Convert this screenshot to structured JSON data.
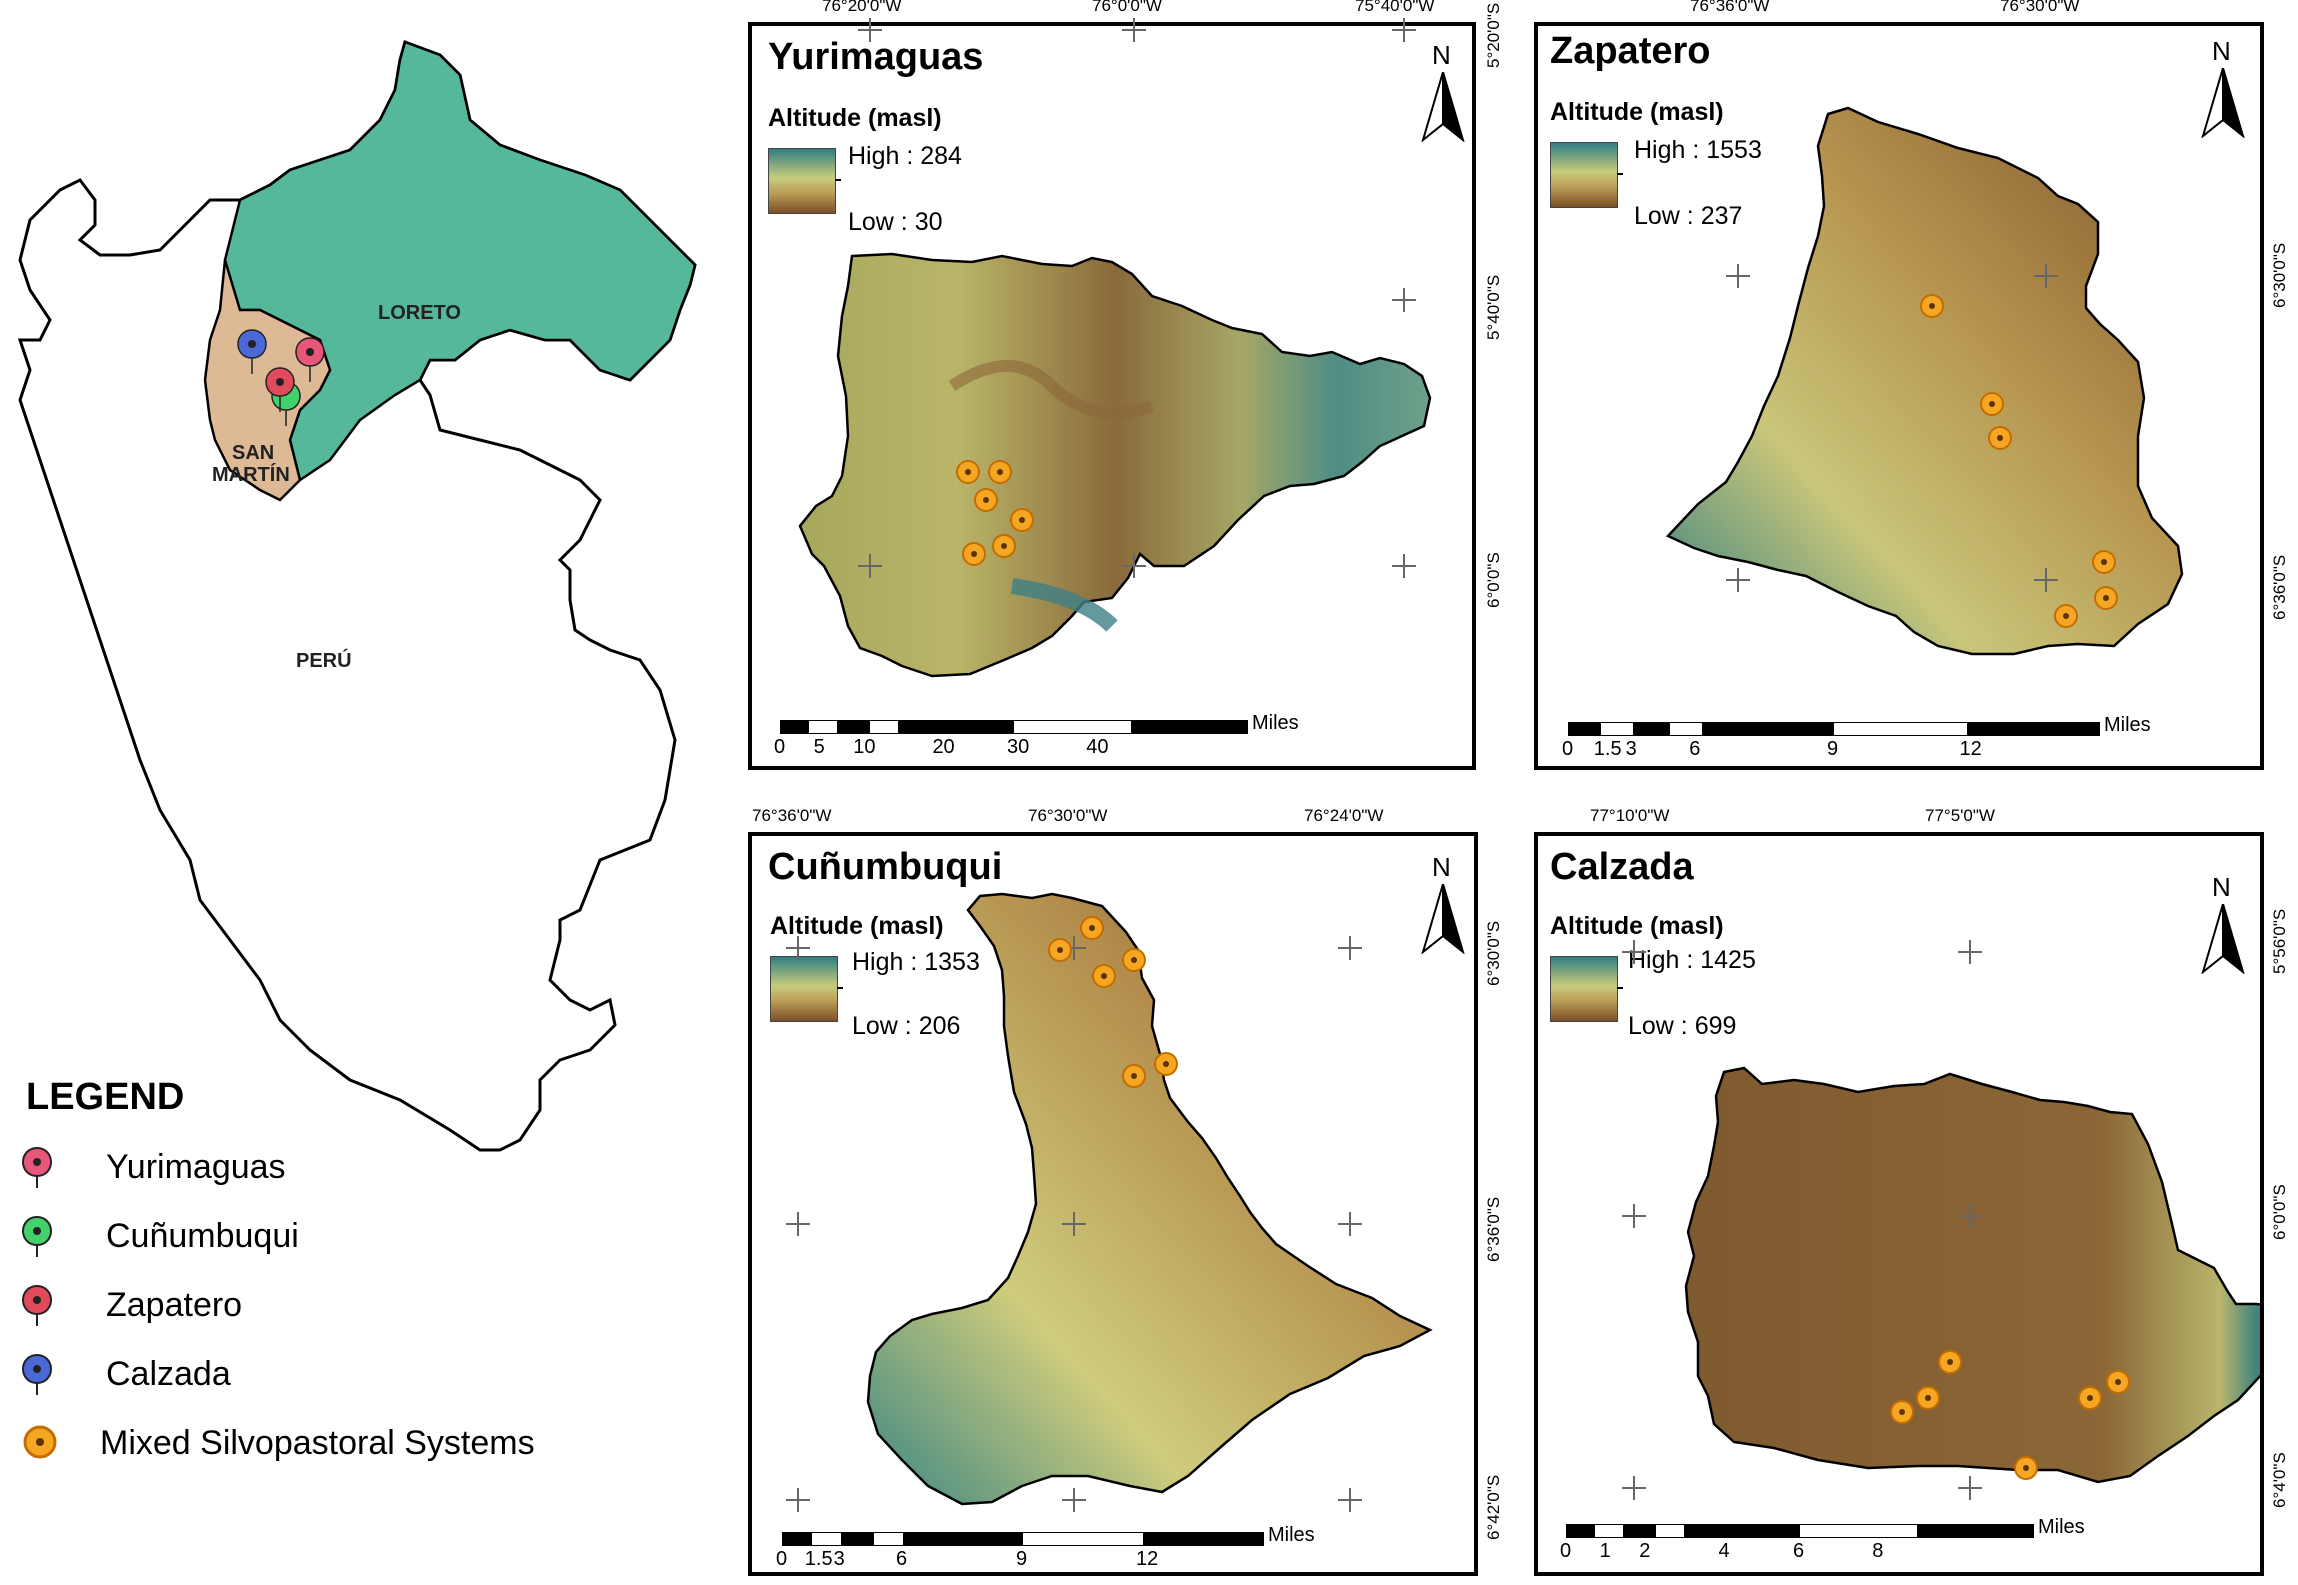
{
  "overview": {
    "labels": {
      "loreto": "LORETO",
      "san_martin_1": "SAN",
      "san_martin_2": "MARTÍN",
      "peru": "PERÚ"
    },
    "colors": {
      "loreto": "#55b89a",
      "san_martin": "#ddb996",
      "outline": "#000000"
    }
  },
  "legend": {
    "title": "LEGEND",
    "items": [
      {
        "label": "Yurimaguas",
        "icon": "pink-pin-icon",
        "color": "#e8567a"
      },
      {
        "label": "Cuñumbuqui",
        "icon": "green-pin-icon",
        "color": "#43d16c"
      },
      {
        "label": "Zapatero",
        "icon": "red-pin-icon",
        "color": "#e04a5a"
      },
      {
        "label": "Calzada",
        "icon": "blue-pin-icon",
        "color": "#4a68d8"
      },
      {
        "label": "Mixed Silvopastoral Systems",
        "icon": "orange-dot-icon",
        "color": "#f5a623"
      }
    ]
  },
  "panels": {
    "yurimaguas": {
      "title": "Yurimaguas",
      "alt_label": "Altitude (masl)",
      "high": "High : 284",
      "low": "Low : 30",
      "top_ticks": [
        "76°20'0\"W",
        "76°0'0\"W",
        "75°40'0\"W"
      ],
      "right_ticks": [
        "5°20'0\"S",
        "5°40'0\"S",
        "6°0'0\"S"
      ],
      "scale": [
        "0",
        "5",
        "10",
        "20",
        "30",
        "40"
      ],
      "unit": "Miles",
      "north": "N"
    },
    "zapatero": {
      "title": "Zapatero",
      "alt_label": "Altitude (masl)",
      "high": "High : 1553",
      "low": "Low : 237",
      "top_ticks": [
        "76°36'0\"W",
        "76°30'0\"W"
      ],
      "right_ticks": [
        "6°30'0\"S",
        "6°36'0\"S"
      ],
      "scale": [
        "0",
        "1.5",
        "3",
        "6",
        "9",
        "12"
      ],
      "unit": "Miles",
      "north": "N"
    },
    "cunumbuqui": {
      "title": "Cuñumbuqui",
      "alt_label": "Altitude (masl)",
      "high": "High : 1353",
      "low": "Low : 206",
      "top_ticks": [
        "76°36'0\"W",
        "76°30'0\"W",
        "76°24'0\"W"
      ],
      "right_ticks": [
        "6°30'0\"S",
        "6°36'0\"S",
        "6°42'0\"S"
      ],
      "scale": [
        "0",
        "1.5",
        "3",
        "6",
        "9",
        "12"
      ],
      "unit": "Miles",
      "north": "N"
    },
    "calzada": {
      "title": "Calzada",
      "alt_label": "Altitude (masl)",
      "high": "High : 1425",
      "low": "Low : 699",
      "top_ticks": [
        "77°10'0\"W",
        "77°5'0\"W"
      ],
      "right_ticks": [
        "5°56'0\"S",
        "6°0'0\"S",
        "6°4'0\"S"
      ],
      "scale": [
        "0",
        "1",
        "2",
        "4",
        "6",
        "8"
      ],
      "unit": "Miles",
      "north": "N"
    }
  },
  "colors": {
    "dot_fill": "#f5a623",
    "dot_ring": "#c46c00",
    "dem_low": "#7a5028",
    "dem_mid": "#c7cc7c",
    "dem_high": "#2f7e82"
  }
}
